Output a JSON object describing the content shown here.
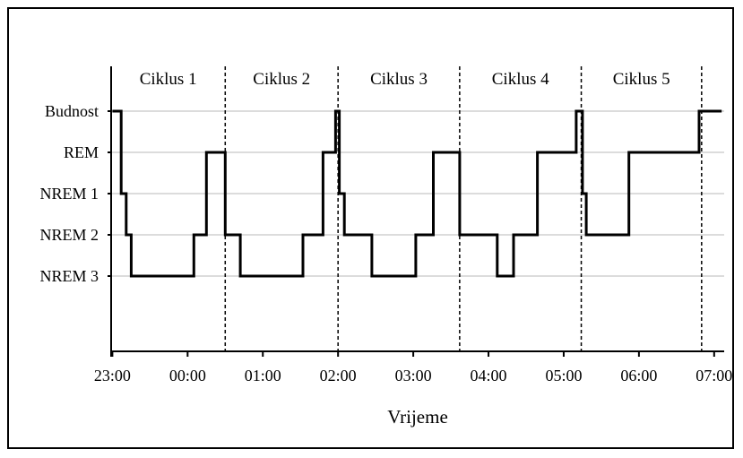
{
  "chart_data": {
    "type": "line",
    "title": "",
    "xlabel": "Vrijeme",
    "ylabel": "",
    "y_categories": [
      "Budnost",
      "REM",
      "NREM 1",
      "NREM 2",
      "NREM 3"
    ],
    "x_ticks": [
      "23:00",
      "00:00",
      "01:00",
      "02:00",
      "03:00",
      "04:00",
      "05:00",
      "06:00",
      "07:00"
    ],
    "xlim": [
      "22:59",
      "07:08"
    ],
    "grid": "horizontal",
    "cycle_boundaries": [
      "00:30",
      "02:00",
      "03:37",
      "05:14",
      "06:50"
    ],
    "cycles": [
      {
        "label": "Ciklus 1",
        "start": "22:59",
        "end": "00:30"
      },
      {
        "label": "Ciklus 2",
        "start": "00:30",
        "end": "02:00"
      },
      {
        "label": "Ciklus 3",
        "start": "02:00",
        "end": "03:37"
      },
      {
        "label": "Ciklus 4",
        "start": "03:37",
        "end": "05:14"
      },
      {
        "label": "Ciklus 5",
        "start": "05:14",
        "end": "06:50"
      }
    ],
    "series": [
      {
        "points": [
          [
            "23:00",
            "Budnost"
          ],
          [
            "23:07",
            "NREM 1"
          ],
          [
            "23:11",
            "NREM 2"
          ],
          [
            "23:15",
            "NREM 3"
          ],
          [
            "00:05",
            "NREM 2"
          ],
          [
            "00:15",
            "REM"
          ],
          [
            "00:30",
            "NREM 2"
          ],
          [
            "00:42",
            "NREM 3"
          ],
          [
            "01:32",
            "NREM 2"
          ],
          [
            "01:48",
            "REM"
          ],
          [
            "01:58",
            "Budnost"
          ],
          [
            "02:01",
            "NREM 1"
          ],
          [
            "02:05",
            "NREM 2"
          ],
          [
            "02:27",
            "NREM 3"
          ],
          [
            "03:02",
            "NREM 2"
          ],
          [
            "03:16",
            "REM"
          ],
          [
            "03:37",
            "NREM 2"
          ],
          [
            "04:07",
            "NREM 3"
          ],
          [
            "04:20",
            "NREM 2"
          ],
          [
            "04:39",
            "REM"
          ],
          [
            "05:10",
            "Budnost"
          ],
          [
            "05:15",
            "NREM 1"
          ],
          [
            "05:18",
            "NREM 2"
          ],
          [
            "05:52",
            "REM"
          ],
          [
            "06:48",
            "Budnost"
          ],
          [
            "07:06",
            "Budnost"
          ]
        ]
      }
    ]
  }
}
